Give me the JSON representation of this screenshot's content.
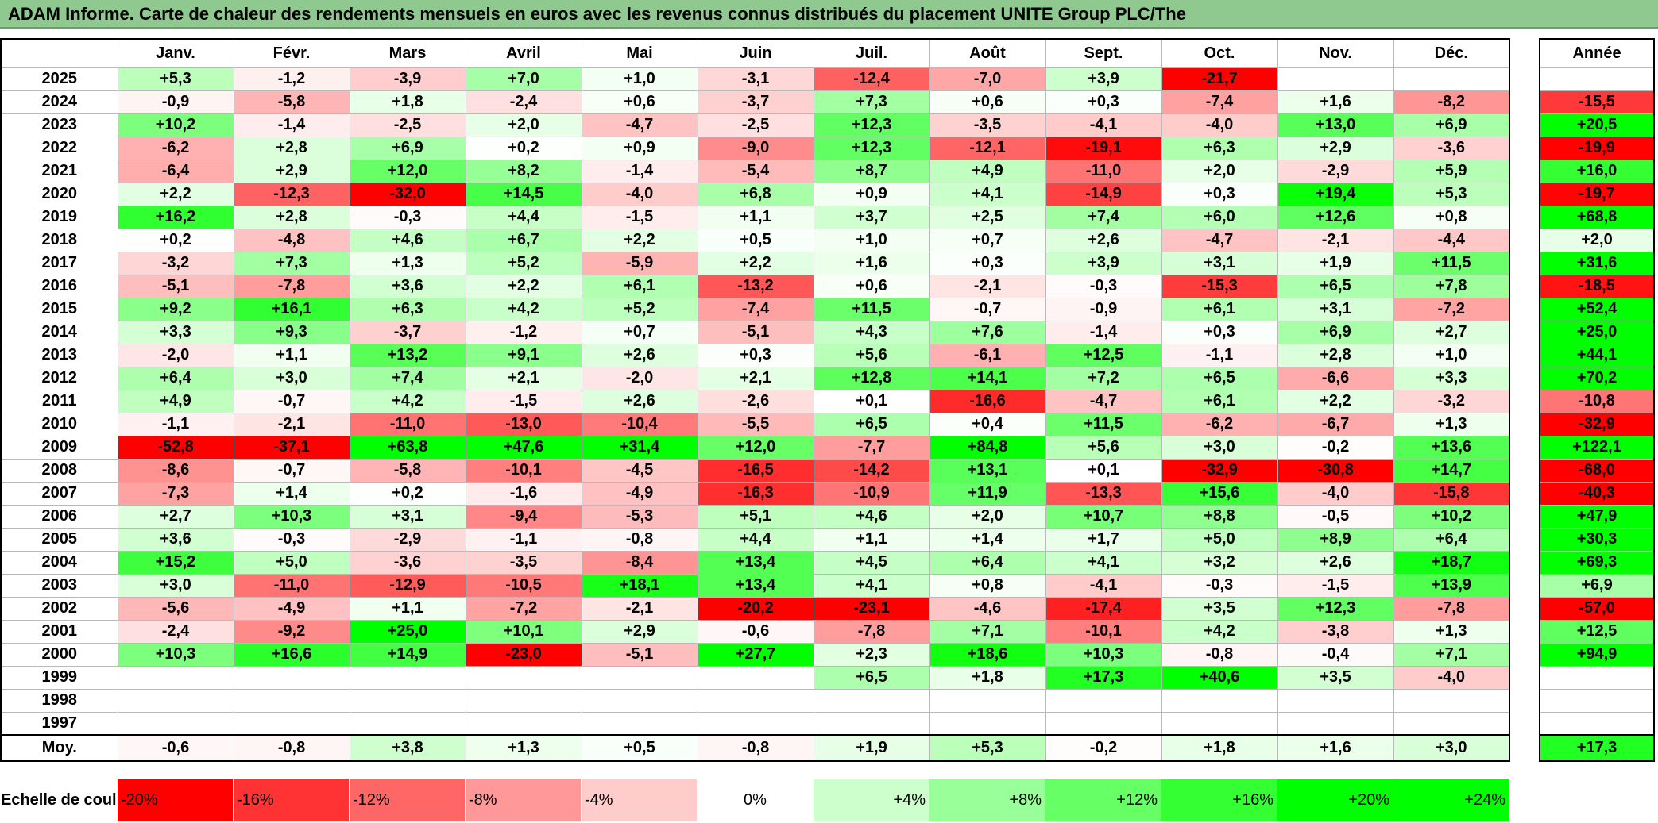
{
  "title": "ADAM Informe. Carte de chaleur des rendements mensuels en euros avec les revenus connus distribués du placement UNITE Group PLC/The",
  "chart_data": {
    "type": "heatmap",
    "months": [
      "Janv.",
      "Févr.",
      "Mars",
      "Avril",
      "Mai",
      "Juin",
      "Juil.",
      "Août",
      "Sept.",
      "Oct.",
      "Nov.",
      "Déc."
    ],
    "year_header": "Année",
    "rows": [
      {
        "year": "2025",
        "values": [
          "+5,3",
          "-1,2",
          "-3,9",
          "+7,0",
          "+1,0",
          "-3,1",
          "-12,4",
          "-7,0",
          "+3,9",
          "-21,7",
          "",
          ""
        ],
        "annual": ""
      },
      {
        "year": "2024",
        "values": [
          "-0,9",
          "-5,8",
          "+1,8",
          "-2,4",
          "+0,6",
          "-3,7",
          "+7,3",
          "+0,6",
          "+0,3",
          "-7,4",
          "+1,6",
          "-8,2"
        ],
        "annual": "-15,5"
      },
      {
        "year": "2023",
        "values": [
          "+10,2",
          "-1,4",
          "-2,5",
          "+2,0",
          "-4,7",
          "-2,5",
          "+12,3",
          "-3,5",
          "-4,1",
          "-4,0",
          "+13,0",
          "+6,9"
        ],
        "annual": "+20,5"
      },
      {
        "year": "2022",
        "values": [
          "-6,2",
          "+2,8",
          "+6,9",
          "+0,2",
          "+0,9",
          "-9,0",
          "+12,3",
          "-12,1",
          "-19,1",
          "+6,3",
          "+2,9",
          "-3,6"
        ],
        "annual": "-19,9"
      },
      {
        "year": "2021",
        "values": [
          "-6,4",
          "+2,9",
          "+12,0",
          "+8,2",
          "-1,4",
          "-5,4",
          "+8,7",
          "+4,9",
          "-11,0",
          "+2,0",
          "-2,9",
          "+5,9"
        ],
        "annual": "+16,0"
      },
      {
        "year": "2020",
        "values": [
          "+2,2",
          "-12,3",
          "-32,0",
          "+14,5",
          "-4,0",
          "+6,8",
          "+0,9",
          "+4,1",
          "-14,9",
          "+0,3",
          "+19,4",
          "+5,3"
        ],
        "annual": "-19,7"
      },
      {
        "year": "2019",
        "values": [
          "+16,2",
          "+2,8",
          "-0,3",
          "+4,4",
          "-1,5",
          "+1,1",
          "+3,7",
          "+2,5",
          "+7,4",
          "+6,0",
          "+12,6",
          "+0,8"
        ],
        "annual": "+68,8"
      },
      {
        "year": "2018",
        "values": [
          "+0,2",
          "-4,8",
          "+4,6",
          "+6,7",
          "+2,2",
          "+0,5",
          "+1,0",
          "+0,7",
          "+2,6",
          "-4,7",
          "-2,1",
          "-4,4"
        ],
        "annual": "+2,0"
      },
      {
        "year": "2017",
        "values": [
          "-3,2",
          "+7,3",
          "+1,3",
          "+5,2",
          "-5,9",
          "+2,2",
          "+1,6",
          "+0,3",
          "+3,9",
          "+3,1",
          "+1,9",
          "+11,5"
        ],
        "annual": "+31,6"
      },
      {
        "year": "2016",
        "values": [
          "-5,1",
          "-7,8",
          "+3,6",
          "+2,2",
          "+6,1",
          "-13,2",
          "+0,6",
          "-2,1",
          "-0,3",
          "-15,3",
          "+6,5",
          "+7,8"
        ],
        "annual": "-18,5"
      },
      {
        "year": "2015",
        "values": [
          "+9,2",
          "+16,1",
          "+6,3",
          "+4,2",
          "+5,2",
          "-7,4",
          "+11,5",
          "-0,7",
          "-0,9",
          "+6,1",
          "+3,1",
          "-7,2"
        ],
        "annual": "+52,4"
      },
      {
        "year": "2014",
        "values": [
          "+3,3",
          "+9,3",
          "-3,7",
          "-1,2",
          "+0,7",
          "-5,1",
          "+4,3",
          "+7,6",
          "-1,4",
          "+0,3",
          "+6,9",
          "+2,7"
        ],
        "annual": "+25,0"
      },
      {
        "year": "2013",
        "values": [
          "-2,0",
          "+1,1",
          "+13,2",
          "+9,1",
          "+2,6",
          "+0,3",
          "+5,6",
          "-6,1",
          "+12,5",
          "-1,1",
          "+2,8",
          "+1,0"
        ],
        "annual": "+44,1"
      },
      {
        "year": "2012",
        "values": [
          "+6,4",
          "+3,0",
          "+7,4",
          "+2,1",
          "-2,0",
          "+2,1",
          "+12,8",
          "+14,1",
          "+7,2",
          "+6,5",
          "-6,6",
          "+3,3"
        ],
        "annual": "+70,2"
      },
      {
        "year": "2011",
        "values": [
          "+4,9",
          "-0,7",
          "+4,2",
          "-1,5",
          "+2,6",
          "-2,6",
          "+0,1",
          "-16,6",
          "-4,7",
          "+6,1",
          "+2,2",
          "-3,2"
        ],
        "annual": "-10,8"
      },
      {
        "year": "2010",
        "values": [
          "-1,1",
          "-2,1",
          "-11,0",
          "-13,0",
          "-10,4",
          "-5,5",
          "+6,5",
          "+0,4",
          "+11,5",
          "-6,2",
          "-6,7",
          "+1,3"
        ],
        "annual": "-32,9"
      },
      {
        "year": "2009",
        "values": [
          "-52,8",
          "-37,1",
          "+63,8",
          "+47,6",
          "+31,4",
          "+12,0",
          "-7,7",
          "+84,8",
          "+5,6",
          "+3,0",
          "-0,2",
          "+13,6"
        ],
        "annual": "+122,1"
      },
      {
        "year": "2008",
        "values": [
          "-8,6",
          "-0,7",
          "-5,8",
          "-10,1",
          "-4,5",
          "-16,5",
          "-14,2",
          "+13,1",
          "+0,1",
          "-32,9",
          "-30,8",
          "+14,7"
        ],
        "annual": "-68,0"
      },
      {
        "year": "2007",
        "values": [
          "-7,3",
          "+1,4",
          "+0,2",
          "-1,6",
          "-4,9",
          "-16,3",
          "-10,9",
          "+11,9",
          "-13,3",
          "+15,6",
          "-4,0",
          "-15,8"
        ],
        "annual": "-40,3"
      },
      {
        "year": "2006",
        "values": [
          "+2,7",
          "+10,3",
          "+3,1",
          "-9,4",
          "-5,3",
          "+5,1",
          "+4,6",
          "+2,0",
          "+10,7",
          "+8,8",
          "-0,5",
          "+10,2"
        ],
        "annual": "+47,9"
      },
      {
        "year": "2005",
        "values": [
          "+3,6",
          "-0,3",
          "-2,9",
          "-1,1",
          "-0,8",
          "+4,4",
          "+1,1",
          "+1,4",
          "+1,7",
          "+5,0",
          "+8,9",
          "+6,4"
        ],
        "annual": "+30,3"
      },
      {
        "year": "2004",
        "values": [
          "+15,2",
          "+5,0",
          "-3,6",
          "-3,5",
          "-8,4",
          "+13,4",
          "+4,5",
          "+6,4",
          "+4,1",
          "+3,2",
          "+2,6",
          "+18,7"
        ],
        "annual": "+69,3"
      },
      {
        "year": "2003",
        "values": [
          "+3,0",
          "-11,0",
          "-12,9",
          "-10,5",
          "+18,1",
          "+13,4",
          "+4,1",
          "+0,8",
          "-4,1",
          "-0,3",
          "-1,5",
          "+13,9"
        ],
        "annual": "+6,9"
      },
      {
        "year": "2002",
        "values": [
          "-5,6",
          "-4,9",
          "+1,1",
          "-7,2",
          "-2,1",
          "-20,2",
          "-23,1",
          "-4,6",
          "-17,4",
          "+3,5",
          "+12,3",
          "-7,8"
        ],
        "annual": "-57,0"
      },
      {
        "year": "2001",
        "values": [
          "-2,4",
          "-9,2",
          "+25,0",
          "+10,1",
          "+2,9",
          "-0,6",
          "-7,8",
          "+7,1",
          "-10,1",
          "+4,2",
          "-3,8",
          "+1,3"
        ],
        "annual": "+12,5"
      },
      {
        "year": "2000",
        "values": [
          "+10,3",
          "+16,6",
          "+14,9",
          "-23,0",
          "-5,1",
          "+27,7",
          "+2,3",
          "+18,6",
          "+10,3",
          "-0,8",
          "-0,4",
          "+7,1"
        ],
        "annual": "+94,9"
      },
      {
        "year": "1999",
        "values": [
          "",
          "",
          "",
          "",
          "",
          "",
          "+6,5",
          "+1,8",
          "+17,3",
          "+40,6",
          "+3,5",
          "-4,0"
        ],
        "annual": ""
      },
      {
        "year": "1998",
        "values": [
          "",
          "",
          "",
          "",
          "",
          "",
          "",
          "",
          "",
          "",
          "",
          ""
        ],
        "annual": ""
      },
      {
        "year": "1997",
        "values": [
          "",
          "",
          "",
          "",
          "",
          "",
          "",
          "",
          "",
          "",
          "",
          ""
        ],
        "annual": ""
      }
    ],
    "average": {
      "label": "Moy.",
      "values": [
        "-0,6",
        "-0,8",
        "+3,8",
        "+1,3",
        "+0,5",
        "-0,8",
        "+1,9",
        "+5,3",
        "-0,2",
        "+1,8",
        "+1,6",
        "+3,0"
      ],
      "annual": "+17,3"
    },
    "scale": {
      "label": "Echelle de couleur",
      "steps": [
        "-20%",
        "-16%",
        "-12%",
        "-8%",
        "-4%",
        "0%",
        "+4%",
        "+8%",
        "+12%",
        "+16%",
        "+20%",
        "+24%"
      ]
    },
    "colors": {
      "negative": "#ff0000",
      "positive": "#00ff00",
      "neutral": "#ffffff"
    }
  }
}
